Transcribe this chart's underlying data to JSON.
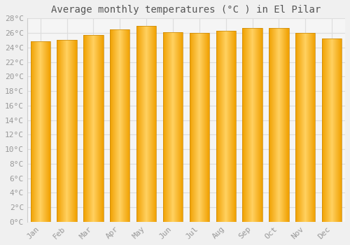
{
  "title": "Average monthly temperatures (°C ) in El Pilar",
  "months": [
    "Jan",
    "Feb",
    "Mar",
    "Apr",
    "May",
    "Jun",
    "Jul",
    "Aug",
    "Sep",
    "Oct",
    "Nov",
    "Dec"
  ],
  "values": [
    24.8,
    25.0,
    25.7,
    26.5,
    27.0,
    26.1,
    26.0,
    26.3,
    26.7,
    26.7,
    26.0,
    25.2
  ],
  "bar_color_center": "#FFD060",
  "bar_color_edge": "#F0A000",
  "bar_border_color": "#C8880A",
  "ylim": [
    0,
    28
  ],
  "ytick_step": 2,
  "background_color": "#f0f0f0",
  "plot_bg_color": "#f5f5f5",
  "grid_color": "#dddddd",
  "title_fontsize": 10,
  "tick_fontsize": 8,
  "font_family": "monospace",
  "title_color": "#555555",
  "tick_color": "#999999"
}
